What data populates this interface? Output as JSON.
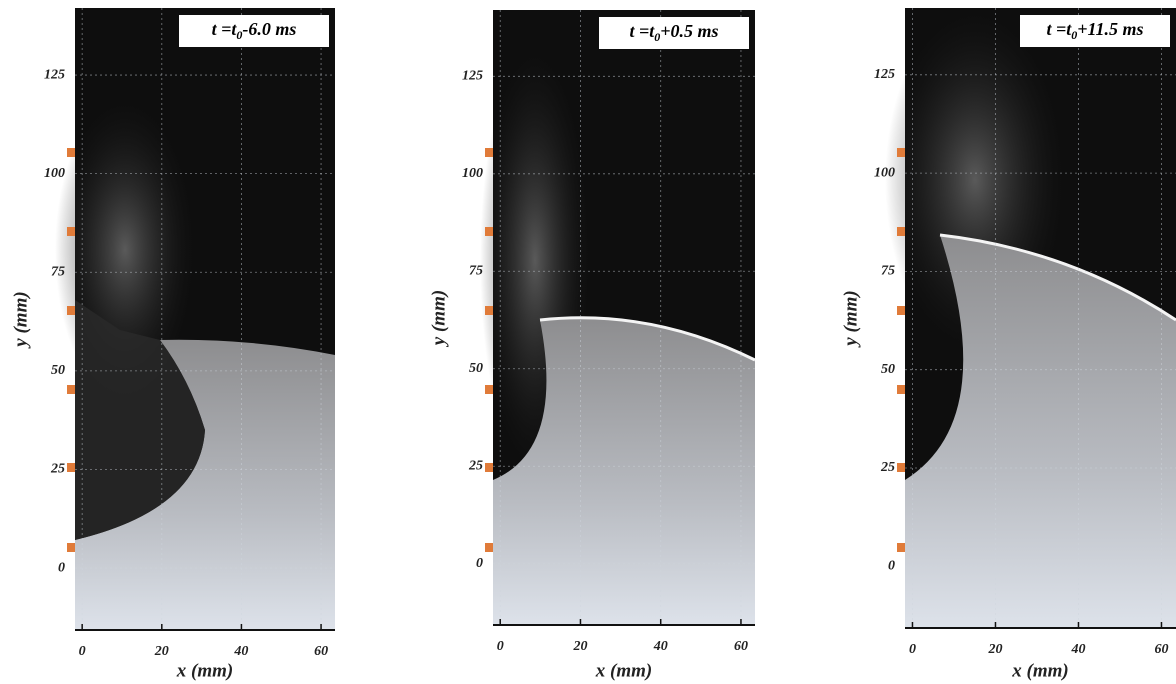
{
  "panels": [
    {
      "label": {
        "prefix": "t =t",
        "sub": "0",
        "suffix": "-6.0 ms"
      },
      "y_label": "y (mm)",
      "x_label": "x (mm)",
      "yticks": [
        0,
        25,
        50,
        75,
        100,
        125
      ],
      "xticks": [
        0,
        20,
        40,
        60
      ],
      "ylim": [
        -15.7,
        142
      ],
      "xlim": [
        -1.8,
        63.5
      ]
    },
    {
      "label": {
        "prefix": "t =t",
        "sub": "0",
        "suffix": "+0.5 ms"
      },
      "y_label": "y (mm)",
      "x_label": "x (mm)",
      "yticks": [
        0,
        25,
        50,
        75,
        100,
        125
      ],
      "xticks": [
        0,
        20,
        40,
        60
      ],
      "ylim": [
        -15.7,
        142
      ],
      "xlim": [
        -1.8,
        63.5
      ]
    },
    {
      "label": {
        "prefix": "t =t",
        "sub": "0",
        "suffix": "+11.5 ms"
      },
      "y_label": "y (mm)",
      "x_label": "x (mm)",
      "yticks": [
        0,
        25,
        50,
        75,
        100,
        125
      ],
      "xticks": [
        0,
        20,
        40,
        60
      ],
      "ylim": [
        -15.7,
        142
      ],
      "xlim": [
        -1.8,
        63.5
      ]
    }
  ]
}
